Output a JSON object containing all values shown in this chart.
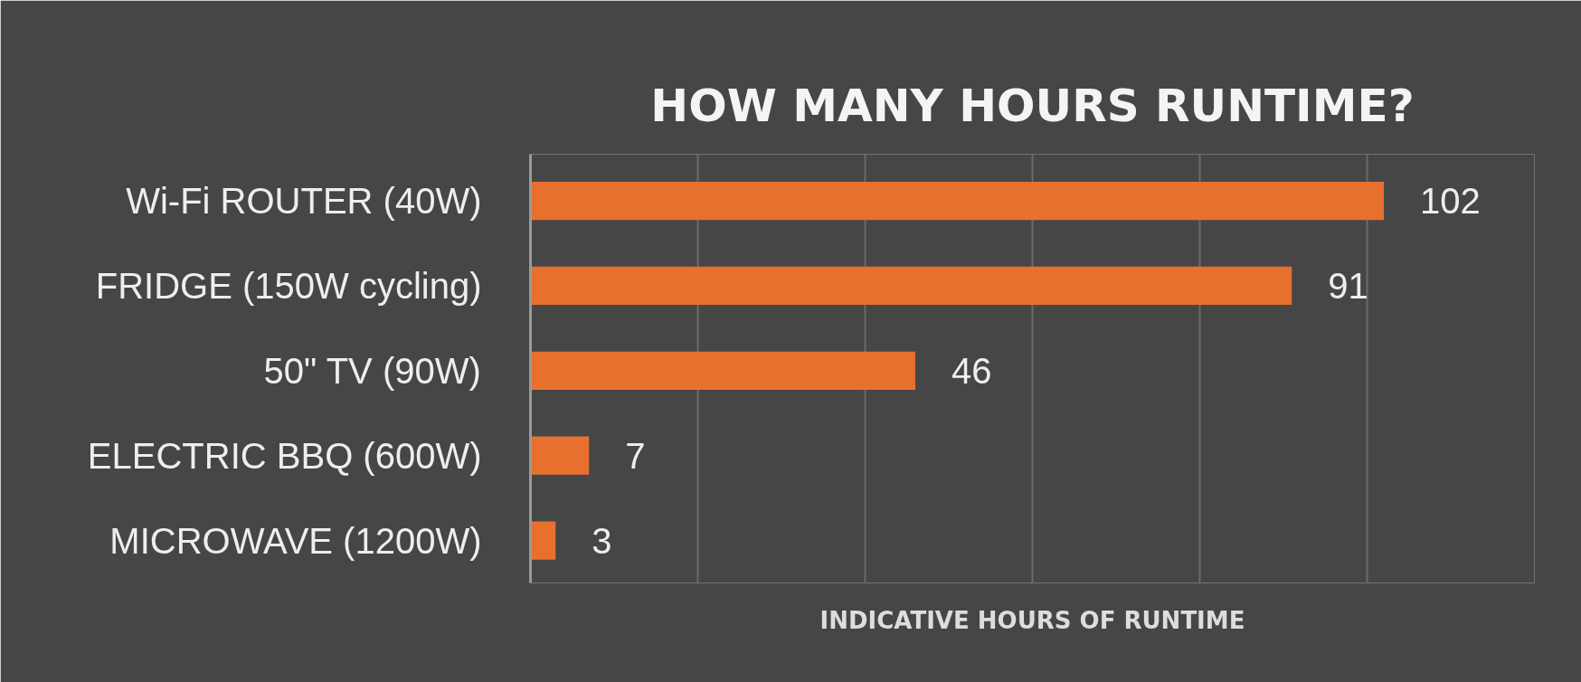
{
  "chart_data": {
    "type": "bar",
    "orientation": "horizontal",
    "title": "HOW MANY HOURS RUNTIME?",
    "xlabel": "INDICATIVE HOURS OF RUNTIME",
    "categories": [
      "Wi-Fi ROUTER (40W)",
      "FRIDGE (150W cycling)",
      "50\" TV (90W)",
      "ELECTRIC BBQ (600W)",
      "MICROWAVE (1200W)"
    ],
    "values": [
      102,
      91,
      46,
      7,
      3
    ],
    "color": "#e8702f",
    "data_labels": true,
    "xlim": [
      0,
      120
    ],
    "xticks": [
      {
        "value": 0,
        "label": null
      },
      {
        "value": 20,
        "label": null
      },
      {
        "value": 40,
        "label": null
      },
      {
        "value": 60,
        "label": null
      },
      {
        "value": 80,
        "label": null
      },
      {
        "value": 100,
        "label": null
      },
      {
        "value": 120,
        "label": null
      }
    ],
    "grid": "x",
    "tick_labels": "y"
  }
}
